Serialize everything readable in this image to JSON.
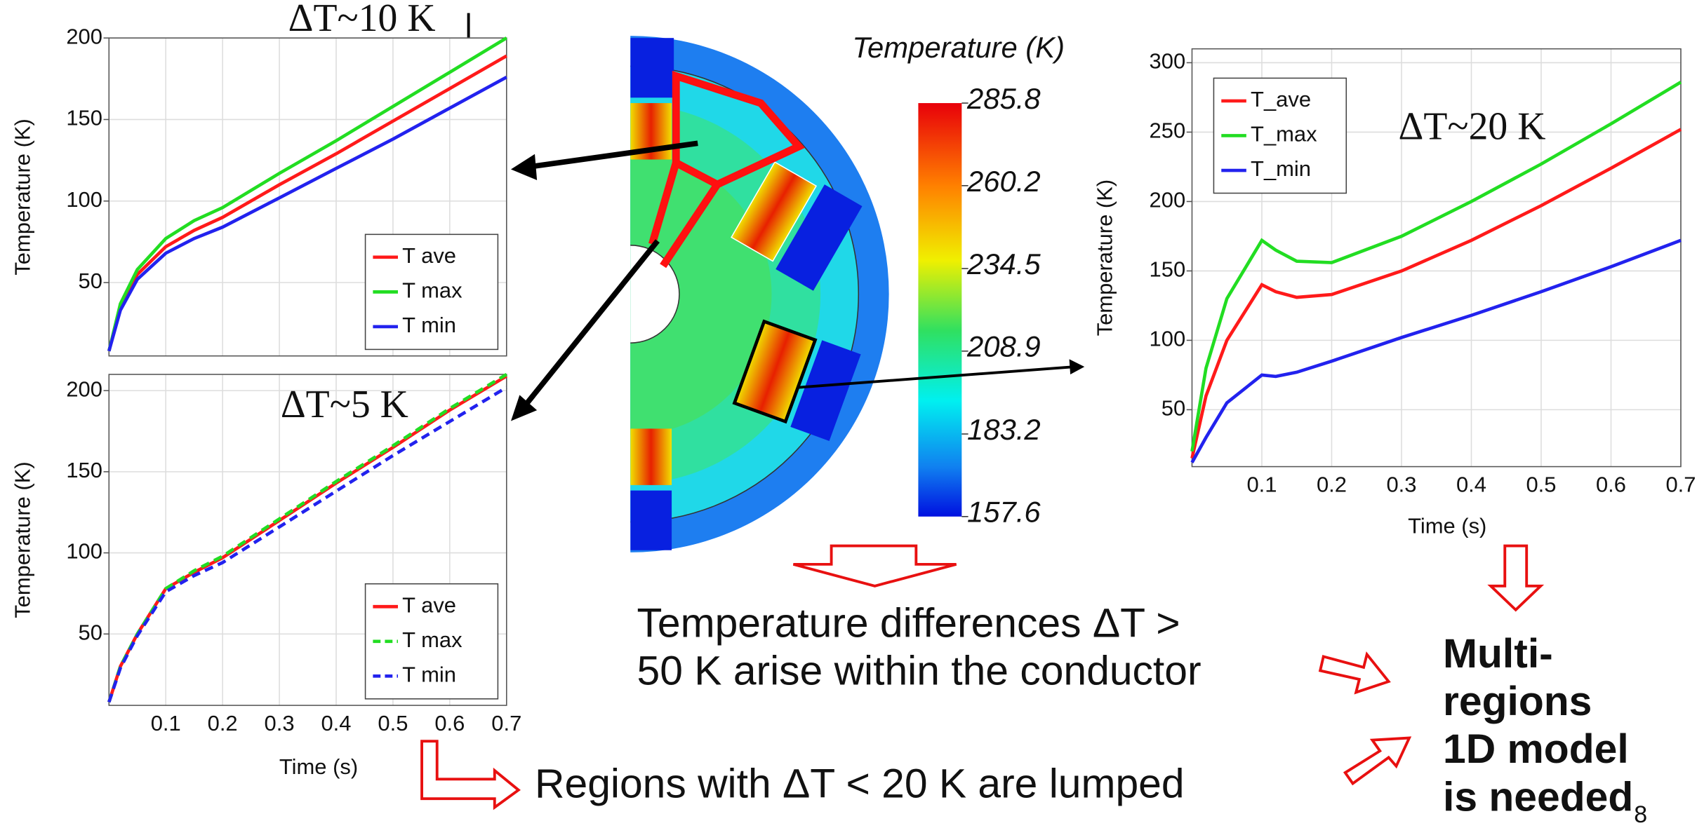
{
  "chart_data": [
    {
      "type": "line",
      "ylabel": "Temperature (K)",
      "xlim": [
        0,
        0.7
      ],
      "ylim": [
        5,
        200
      ],
      "xticks": [
        0.1,
        0.2,
        0.3,
        0.4,
        0.5,
        0.6,
        0.7
      ],
      "yticks": [
        50,
        100,
        150,
        200
      ],
      "grid": true,
      "legend": "lower right",
      "annotation": "ΔT~10 K",
      "x": [
        0,
        0.02,
        0.05,
        0.1,
        0.15,
        0.2,
        0.3,
        0.4,
        0.5,
        0.6,
        0.7
      ],
      "series": [
        {
          "name": "T ave",
          "color": "#ff1a1a",
          "values": [
            8,
            35,
            55,
            72,
            82,
            90,
            110,
            129,
            149,
            169,
            189
          ]
        },
        {
          "name": "T max",
          "color": "#22dd22",
          "values": [
            8,
            37,
            58,
            77,
            88,
            96,
            117,
            137,
            158,
            179,
            200
          ]
        },
        {
          "name": "T min",
          "color": "#2222ee",
          "values": [
            8,
            33,
            52,
            68,
            77,
            84,
            102,
            120,
            138,
            157,
            176
          ]
        }
      ]
    },
    {
      "type": "line",
      "xlabel": "Time (s)",
      "ylabel": "Temperature (K)",
      "xlim": [
        0,
        0.7
      ],
      "ylim": [
        6,
        210
      ],
      "xticks": [
        0.1,
        0.2,
        0.3,
        0.4,
        0.5,
        0.6,
        0.7
      ],
      "yticks": [
        50,
        100,
        150,
        200
      ],
      "grid": true,
      "legend": "lower right",
      "annotation": "ΔT~5 K",
      "x": [
        0,
        0.02,
        0.05,
        0.1,
        0.15,
        0.2,
        0.3,
        0.4,
        0.5,
        0.6,
        0.7
      ],
      "series": [
        {
          "name": "T ave",
          "color": "#ff1a1a",
          "linestyle": "solid",
          "values": [
            8,
            30,
            50,
            78,
            88,
            97,
            120,
            143,
            165,
            188,
            209
          ]
        },
        {
          "name": "T max",
          "color": "#22dd22",
          "linestyle": "dashed",
          "values": [
            8,
            30,
            50,
            78,
            89,
            98,
            121,
            144,
            166,
            189,
            210
          ]
        },
        {
          "name": "T min",
          "color": "#2222ee",
          "linestyle": "dashed",
          "values": [
            8,
            29,
            49,
            76,
            86,
            94,
            116,
            138,
            160,
            181,
            202
          ]
        }
      ]
    },
    {
      "type": "line",
      "xlabel": "Time (s)",
      "ylabel": "Temperature (K)",
      "xlim": [
        0,
        0.7
      ],
      "ylim": [
        9,
        310
      ],
      "xticks": [
        0.1,
        0.2,
        0.3,
        0.4,
        0.5,
        0.6,
        0.7
      ],
      "yticks": [
        50,
        100,
        150,
        200,
        250,
        300
      ],
      "grid": true,
      "legend": "upper left",
      "annotation": "ΔT~20 K",
      "x": [
        0,
        0.02,
        0.05,
        0.1,
        0.12,
        0.15,
        0.2,
        0.3,
        0.4,
        0.5,
        0.6,
        0.7
      ],
      "series": [
        {
          "name": "T_ave",
          "color": "#ff1a1a",
          "values": [
            15,
            60,
            100,
            140,
            135,
            131,
            133,
            150,
            172,
            197,
            224,
            252
          ]
        },
        {
          "name": "T_max",
          "color": "#22dd22",
          "values": [
            20,
            80,
            130,
            172,
            165,
            157,
            156,
            175,
            200,
            227,
            256,
            286
          ]
        },
        {
          "name": "T_min",
          "color": "#2222ee",
          "values": [
            12,
            30,
            55,
            75,
            74,
            77,
            85,
            102,
            118,
            135,
            153,
            172
          ]
        }
      ]
    }
  ],
  "colorbar": {
    "title": "Temperature (K)",
    "lim": [
      157.6,
      285.8
    ],
    "ticks": [
      285.8,
      260.2,
      234.5,
      208.9,
      183.2,
      157.6
    ]
  },
  "text": {
    "differences": [
      "Temperature differences ΔT >",
      "50 K arise within the conductor"
    ],
    "lumped": "Regions with ΔT < 20 K are lumped",
    "conclusion": [
      "Multi-",
      "regions",
      "1D model",
      "is needed"
    ],
    "page": "8"
  }
}
